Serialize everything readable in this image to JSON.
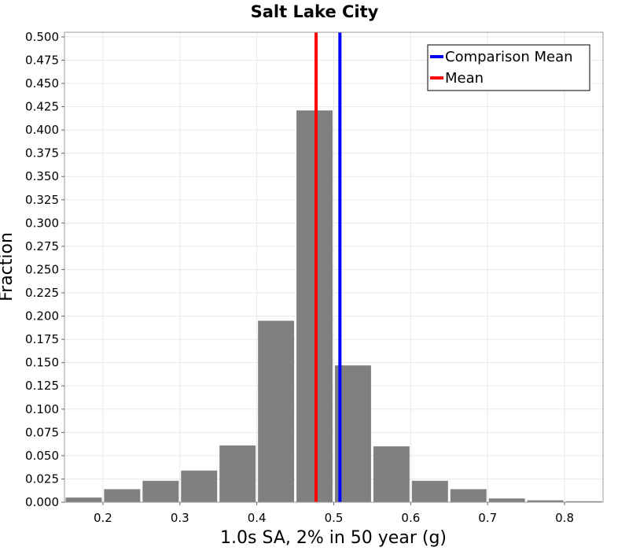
{
  "chart_data": {
    "type": "bar",
    "title": "Salt Lake City",
    "xlabel": "1.0s SA, 2% in 50 year (g)",
    "ylabel": "Fraction",
    "xlim": [
      0.15,
      0.85
    ],
    "ylim": [
      0.0,
      0.505
    ],
    "x_ticks": [
      0.2,
      0.3,
      0.4,
      0.5,
      0.6,
      0.7,
      0.8
    ],
    "x_tick_labels": [
      "0.2",
      "0.3",
      "0.4",
      "0.5",
      "0.6",
      "0.7",
      "0.8"
    ],
    "y_ticks": [
      0.0,
      0.025,
      0.05,
      0.075,
      0.1,
      0.125,
      0.15,
      0.175,
      0.2,
      0.225,
      0.25,
      0.275,
      0.3,
      0.325,
      0.35,
      0.375,
      0.4,
      0.425,
      0.45,
      0.475,
      0.5
    ],
    "y_tick_labels": [
      "0.000",
      "0.025",
      "0.050",
      "0.075",
      "0.100",
      "0.125",
      "0.150",
      "0.175",
      "0.200",
      "0.225",
      "0.250",
      "0.275",
      "0.300",
      "0.325",
      "0.350",
      "0.375",
      "0.400",
      "0.425",
      "0.450",
      "0.475",
      "0.500"
    ],
    "grid": true,
    "bar_color": "#808080",
    "bins": [
      {
        "x0": 0.15,
        "x1": 0.2,
        "value": 0.005
      },
      {
        "x0": 0.2,
        "x1": 0.25,
        "value": 0.014
      },
      {
        "x0": 0.25,
        "x1": 0.3,
        "value": 0.023
      },
      {
        "x0": 0.3,
        "x1": 0.35,
        "value": 0.034
      },
      {
        "x0": 0.35,
        "x1": 0.4,
        "value": 0.061
      },
      {
        "x0": 0.4,
        "x1": 0.45,
        "value": 0.195
      },
      {
        "x0": 0.45,
        "x1": 0.5,
        "value": 0.421
      },
      {
        "x0": 0.5,
        "x1": 0.55,
        "value": 0.147
      },
      {
        "x0": 0.55,
        "x1": 0.6,
        "value": 0.06
      },
      {
        "x0": 0.6,
        "x1": 0.65,
        "value": 0.023
      },
      {
        "x0": 0.65,
        "x1": 0.7,
        "value": 0.014
      },
      {
        "x0": 0.7,
        "x1": 0.75,
        "value": 0.004
      },
      {
        "x0": 0.75,
        "x1": 0.8,
        "value": 0.002
      },
      {
        "x0": 0.8,
        "x1": 0.85,
        "value": 0.001
      }
    ],
    "vlines": [
      {
        "name": "Comparison Mean",
        "x": 0.508,
        "color": "#0000ff"
      },
      {
        "name": "Mean",
        "x": 0.477,
        "color": "#ff0000"
      }
    ],
    "legend_position": "top-right"
  }
}
